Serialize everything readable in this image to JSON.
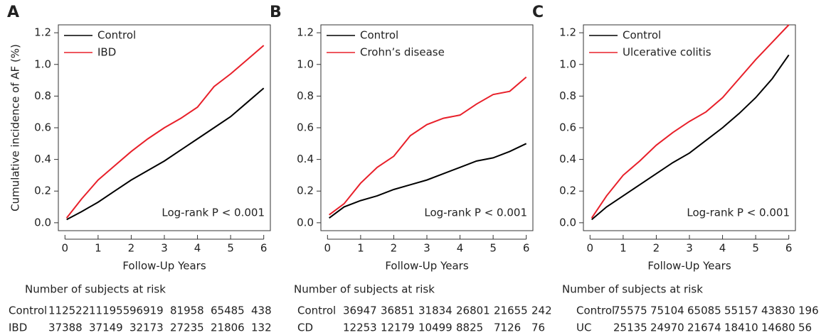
{
  "chart_data": [
    {
      "type": "line",
      "panel": "A",
      "ylabel": "Cumulative incidence of AF (%)",
      "xlabel": "Follow-Up Years",
      "annotation": "Log-rank P < 0.001",
      "x": [
        0.05,
        0.5,
        1,
        1.5,
        2,
        2.5,
        3,
        3.5,
        4,
        4.5,
        5,
        5.5,
        6
      ],
      "series": [
        {
          "name": "Control",
          "color": "#000000",
          "values": [
            0.02,
            0.07,
            0.13,
            0.2,
            0.27,
            0.33,
            0.39,
            0.46,
            0.53,
            0.6,
            0.67,
            0.76,
            0.85
          ]
        },
        {
          "name": "IBD",
          "color": "#e8202a",
          "values": [
            0.03,
            0.15,
            0.27,
            0.36,
            0.45,
            0.53,
            0.6,
            0.66,
            0.73,
            0.86,
            0.94,
            1.03,
            1.12
          ]
        }
      ],
      "xlim": [
        -0.2,
        6.2
      ],
      "xticks": [
        0,
        1,
        2,
        3,
        4,
        5,
        6
      ],
      "ylim": [
        -0.05,
        1.25
      ],
      "yticks": [
        {
          "value": 0,
          "label": "0.0"
        },
        0.2,
        0.4,
        0.6,
        0.8,
        {
          "value": 1,
          "label": "1.0"
        },
        1.2
      ],
      "risk_table": {
        "title": "Number of subjects at risk",
        "rows": [
          {
            "label": "Control",
            "values": [
              112522,
              111955,
              96919,
              81958,
              65485,
              438
            ]
          },
          {
            "label": "IBD",
            "values": [
              37388,
              37149,
              32173,
              27235,
              21806,
              132
            ]
          }
        ]
      }
    },
    {
      "type": "line",
      "panel": "B",
      "xlabel": "Follow-Up Years",
      "annotation": "Log-rank P < 0.001",
      "x": [
        0.05,
        0.5,
        1,
        1.5,
        2,
        2.5,
        3,
        3.5,
        4,
        4.5,
        5,
        5.5,
        6
      ],
      "series": [
        {
          "name": "Control",
          "color": "#000000",
          "values": [
            0.03,
            0.1,
            0.14,
            0.17,
            0.21,
            0.24,
            0.27,
            0.31,
            0.35,
            0.39,
            0.41,
            0.45,
            0.5
          ]
        },
        {
          "name": "Crohn’s disease",
          "color": "#e8202a",
          "values": [
            0.05,
            0.12,
            0.25,
            0.35,
            0.42,
            0.55,
            0.62,
            0.66,
            0.68,
            0.75,
            0.81,
            0.83,
            0.92
          ]
        }
      ],
      "xlim": [
        -0.2,
        6.2
      ],
      "xticks": [
        0,
        1,
        2,
        3,
        4,
        5,
        6
      ],
      "ylim": [
        -0.05,
        1.25
      ],
      "yticks": [
        {
          "value": 0,
          "label": "0.0"
        },
        0.2,
        0.4,
        0.6,
        0.8,
        {
          "value": 1,
          "label": "1.0"
        },
        1.2
      ],
      "risk_table": {
        "title": "Number of subjects at risk",
        "rows": [
          {
            "label": "Control",
            "values": [
              36947,
              36851,
              31834,
              26801,
              21655,
              242
            ]
          },
          {
            "label": "CD",
            "values": [
              12253,
              12179,
              10499,
              8825,
              7126,
              76
            ]
          }
        ]
      }
    },
    {
      "type": "line",
      "panel": "C",
      "xlabel": "Follow-Up Years",
      "annotation": "Log-rank P < 0.001",
      "x": [
        0.05,
        0.5,
        1,
        1.5,
        2,
        2.5,
        3,
        3.5,
        4,
        4.5,
        5,
        5.5,
        6
      ],
      "series": [
        {
          "name": "Control",
          "color": "#000000",
          "values": [
            0.02,
            0.1,
            0.17,
            0.24,
            0.31,
            0.38,
            0.44,
            0.52,
            0.6,
            0.69,
            0.79,
            0.91,
            1.06
          ]
        },
        {
          "name": "Ulcerative colitis",
          "color": "#e8202a",
          "values": [
            0.03,
            0.17,
            0.3,
            0.39,
            0.49,
            0.57,
            0.64,
            0.7,
            0.79,
            0.91,
            1.03,
            1.14,
            1.25
          ]
        }
      ],
      "xlim": [
        -0.2,
        6.2
      ],
      "xticks": [
        0,
        1,
        2,
        3,
        4,
        5,
        6
      ],
      "ylim": [
        -0.05,
        1.25
      ],
      "yticks": [
        {
          "value": 0,
          "label": "0.0"
        },
        0.2,
        0.4,
        0.6,
        0.8,
        {
          "value": 1,
          "label": "1.0"
        },
        1.2
      ],
      "risk_table": {
        "title": "Number of subjects at risk",
        "rows": [
          {
            "label": "Control",
            "values": [
              75575,
              75104,
              65085,
              55157,
              43830,
              196
            ]
          },
          {
            "label": "UC",
            "values": [
              25135,
              24970,
              21674,
              18410,
              14680,
              56
            ]
          }
        ]
      }
    }
  ]
}
